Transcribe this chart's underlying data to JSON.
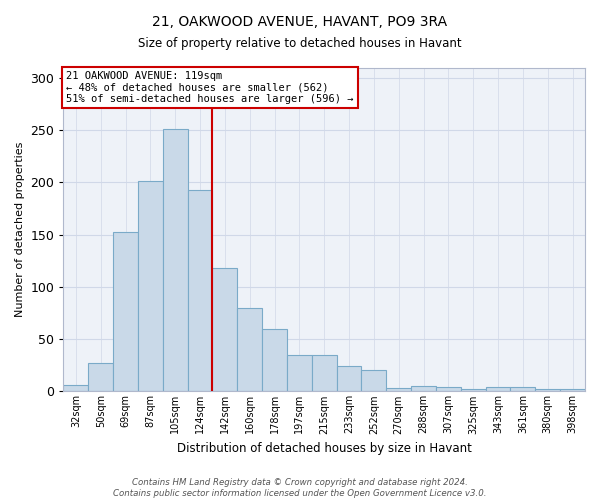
{
  "title1": "21, OAKWOOD AVENUE, HAVANT, PO9 3RA",
  "title2": "Size of property relative to detached houses in Havant",
  "xlabel": "Distribution of detached houses by size in Havant",
  "ylabel": "Number of detached properties",
  "bar_labels": [
    "32sqm",
    "50sqm",
    "69sqm",
    "87sqm",
    "105sqm",
    "124sqm",
    "142sqm",
    "160sqm",
    "178sqm",
    "197sqm",
    "215sqm",
    "233sqm",
    "252sqm",
    "270sqm",
    "288sqm",
    "307sqm",
    "325sqm",
    "343sqm",
    "361sqm",
    "380sqm",
    "398sqm"
  ],
  "bar_values": [
    6,
    27,
    153,
    201,
    251,
    193,
    118,
    80,
    60,
    35,
    35,
    24,
    20,
    3,
    5,
    4,
    2,
    4,
    4,
    2,
    2
  ],
  "bar_color": "#c9d9e8",
  "bar_edge_color": "#7aaac8",
  "vline_x": 5.5,
  "vline_color": "#cc0000",
  "annotation_box_text": "21 OAKWOOD AVENUE: 119sqm\n← 48% of detached houses are smaller (562)\n51% of semi-detached houses are larger (596) →",
  "annotation_box_color": "#cc0000",
  "ylim": [
    0,
    310
  ],
  "yticks": [
    0,
    50,
    100,
    150,
    200,
    250,
    300
  ],
  "grid_color": "#d0d8e8",
  "bg_color": "#eef2f8",
  "fig_color": "#ffffff",
  "footer": "Contains HM Land Registry data © Crown copyright and database right 2024.\nContains public sector information licensed under the Open Government Licence v3.0."
}
